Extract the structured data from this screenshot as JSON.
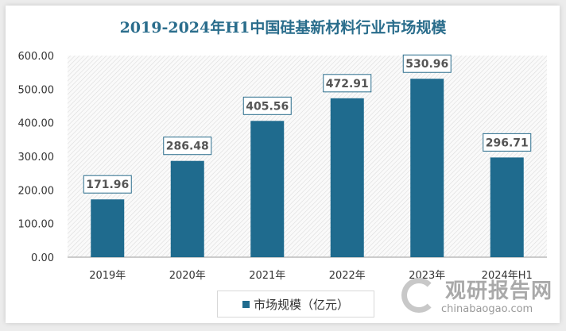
{
  "chart_data": {
    "type": "bar",
    "title": "2019-2024年H1中国硅基新材料行业市场规模",
    "categories": [
      "2019年",
      "2020年",
      "2021年",
      "2022年",
      "2023年",
      "2024年H1"
    ],
    "series": [
      {
        "name": "市场规模（亿元）",
        "values": [
          171.96,
          286.48,
          405.56,
          472.91,
          530.96,
          296.71
        ]
      }
    ],
    "data_labels": [
      "171.96",
      "286.48",
      "405.56",
      "472.91",
      "530.96",
      "296.71"
    ],
    "yticks": [
      "0.00",
      "100.00",
      "200.00",
      "300.00",
      "400.00",
      "500.00",
      "600.00"
    ],
    "ylim": [
      0,
      600
    ],
    "xlabel": "",
    "ylabel": "",
    "grid": false,
    "legend": "bottom",
    "bar_color": "#1f6b8e"
  },
  "watermark": {
    "cn": "观研报告网",
    "en": "chinabaogao.com"
  }
}
